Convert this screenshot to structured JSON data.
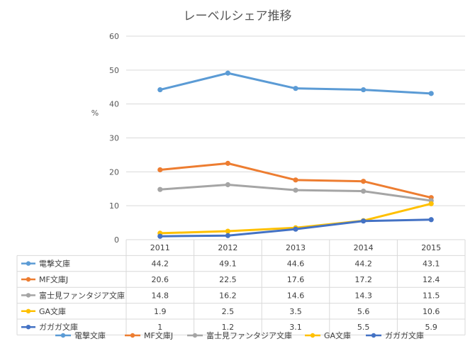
{
  "chart_data": {
    "type": "line",
    "title": "レーベルシェア推移",
    "ylabel": "%",
    "xlabel": "",
    "ylim": [
      0,
      60
    ],
    "yticks": [
      0,
      10,
      20,
      30,
      40,
      50,
      60
    ],
    "categories": [
      "2011",
      "2012",
      "2013",
      "2014",
      "2015"
    ],
    "grid": true,
    "legend": "bottom",
    "has_data_table": true,
    "series": [
      {
        "name": "電撃文庫",
        "values": [
          44.2,
          49.1,
          44.6,
          44.2,
          43.1
        ],
        "color": "#5B9BD5"
      },
      {
        "name": "MF文庫J",
        "values": [
          20.6,
          22.5,
          17.6,
          17.2,
          12.4
        ],
        "color": "#ED7D31"
      },
      {
        "name": "富士見ファンタジア文庫",
        "values": [
          14.8,
          16.2,
          14.6,
          14.3,
          11.5
        ],
        "color": "#A5A5A5"
      },
      {
        "name": "GA文庫",
        "values": [
          1.9,
          2.5,
          3.5,
          5.6,
          10.6
        ],
        "color": "#FFC000"
      },
      {
        "name": "ガガガ文庫",
        "values": [
          1,
          1.2,
          3.1,
          5.5,
          5.9
        ],
        "color": "#4472C4"
      }
    ]
  }
}
